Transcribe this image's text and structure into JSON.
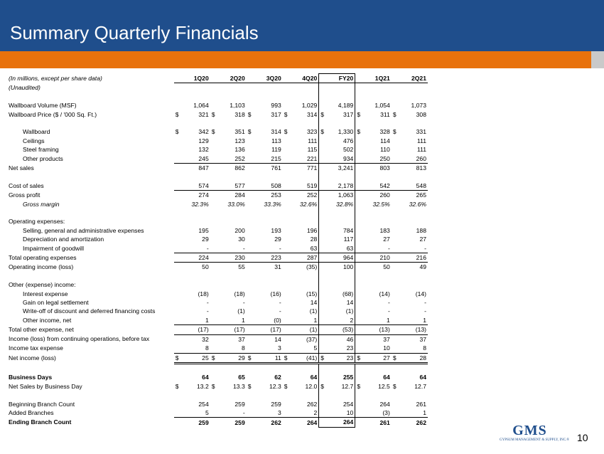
{
  "slide": {
    "title": "Summary Quarterly Financials",
    "page_number": "10",
    "colors": {
      "header": "#1f4e8c",
      "accent_bar": "#e8720c",
      "grey_bar": "#c9c9c9"
    }
  },
  "logo": {
    "text": "GMS",
    "subtitle": "GYPSUM MANAGEMENT & SUPPLY, INC.",
    "registered": "®"
  },
  "table": {
    "note": "(In millions, except per share data)",
    "columns": [
      "1Q20",
      "2Q20",
      "3Q20",
      "4Q20",
      "FY20",
      "1Q21",
      "2Q21"
    ],
    "rows": [
      {
        "label": "(Unaudited)",
        "style": "italic",
        "values": []
      },
      {
        "label": "",
        "style": "spacer",
        "values": []
      },
      {
        "label": "Wallboard Volume (MSF)",
        "values": [
          "1,064",
          "1,103",
          "993",
          "1,029",
          "4,189",
          "1,054",
          "1,073"
        ]
      },
      {
        "label": "Wallboard Price ($ / '000 Sq. Ft.)",
        "currency": true,
        "values": [
          "321",
          "318",
          "317",
          "314",
          "317",
          "311",
          "308"
        ]
      },
      {
        "label": "",
        "style": "spacer",
        "values": []
      },
      {
        "label": "Wallboard",
        "indent": true,
        "currency": true,
        "values": [
          "342",
          "351",
          "314",
          "323",
          "1,330",
          "328",
          "331"
        ]
      },
      {
        "label": "Ceilings",
        "indent": true,
        "values": [
          "129",
          "123",
          "113",
          "111",
          "476",
          "114",
          "111"
        ]
      },
      {
        "label": "Steel framing",
        "indent": true,
        "values": [
          "132",
          "136",
          "119",
          "115",
          "502",
          "110",
          "111"
        ]
      },
      {
        "label": "Other products",
        "indent": true,
        "underline": true,
        "values": [
          "245",
          "252",
          "215",
          "221",
          "934",
          "250",
          "260"
        ]
      },
      {
        "label": "Net sales",
        "values": [
          "847",
          "862",
          "761",
          "771",
          "3,241",
          "803",
          "813"
        ]
      },
      {
        "label": "",
        "style": "spacer",
        "values": []
      },
      {
        "label": "Cost of sales",
        "underline": true,
        "values": [
          "574",
          "577",
          "508",
          "519",
          "2,178",
          "542",
          "548"
        ]
      },
      {
        "label": "Gross profit",
        "values": [
          "274",
          "284",
          "253",
          "252",
          "1,063",
          "260",
          "265"
        ]
      },
      {
        "label": "Gross margin",
        "indent": true,
        "style": "italic",
        "values": [
          "32.3%",
          "33.0%",
          "33.3%",
          "32.6%",
          "32.8%",
          "32.5%",
          "32.6%"
        ]
      },
      {
        "label": "",
        "style": "spacer",
        "values": []
      },
      {
        "label": "Operating expenses:",
        "values": []
      },
      {
        "label": "Selling, general and administrative expenses",
        "indent": true,
        "values": [
          "195",
          "200",
          "193",
          "196",
          "784",
          "183",
          "188"
        ]
      },
      {
        "label": "Depreciation and amortization",
        "indent": true,
        "values": [
          "29",
          "30",
          "29",
          "28",
          "117",
          "27",
          "27"
        ]
      },
      {
        "label": "Impairment of goodwill",
        "indent": true,
        "underline": true,
        "values": [
          "-",
          "-",
          "-",
          "63",
          "63",
          "-",
          "-"
        ]
      },
      {
        "label": "Total operating expenses",
        "underline": true,
        "values": [
          "224",
          "230",
          "223",
          "287",
          "964",
          "210",
          "216"
        ]
      },
      {
        "label": "Operating income (loss)",
        "values": [
          "50",
          "55",
          "31",
          "(35)",
          "100",
          "50",
          "49"
        ]
      },
      {
        "label": "",
        "style": "spacer",
        "values": []
      },
      {
        "label": "Other (expense) income:",
        "values": []
      },
      {
        "label": "Interest expense",
        "indent": true,
        "values": [
          "(18)",
          "(18)",
          "(16)",
          "(15)",
          "(68)",
          "(14)",
          "(14)"
        ]
      },
      {
        "label": "Gain on legal settlement",
        "indent": true,
        "values": [
          "-",
          "-",
          "-",
          "14",
          "14",
          "-",
          "-"
        ]
      },
      {
        "label": "Write-off of discount and deferred financing costs",
        "indent": true,
        "values": [
          "-",
          "(1)",
          "-",
          "(1)",
          "(1)",
          "-",
          "-"
        ]
      },
      {
        "label": "Other income, net",
        "indent": true,
        "underline": true,
        "values": [
          "1",
          "1",
          "(0)",
          "1",
          "2",
          "1",
          "1"
        ]
      },
      {
        "label": "Total other expense, net",
        "underline": true,
        "values": [
          "(17)",
          "(17)",
          "(17)",
          "(1)",
          "(53)",
          "(13)",
          "(13)"
        ]
      },
      {
        "label": "Income (loss) from continuing operations, before tax",
        "values": [
          "32",
          "37",
          "14",
          "(37)",
          "46",
          "37",
          "37"
        ]
      },
      {
        "label": "Income tax expense",
        "underline": true,
        "values": [
          "8",
          "8",
          "3",
          "5",
          "23",
          "10",
          "8"
        ]
      },
      {
        "label": "Net income (loss)",
        "currency": true,
        "double_underline": true,
        "values": [
          "25",
          "29",
          "11",
          "(41)",
          "23",
          "27",
          "28"
        ]
      },
      {
        "label": "",
        "style": "spacer",
        "values": []
      },
      {
        "label": "Business Days",
        "style": "bold",
        "values": [
          "64",
          "65",
          "62",
          "64",
          "255",
          "64",
          "64"
        ]
      },
      {
        "label": "Net Sales by Business Day",
        "currency": true,
        "values": [
          "13.2",
          "13.3",
          "12.3",
          "12.0",
          "12.7",
          "12.5",
          "12.7"
        ]
      },
      {
        "label": "",
        "style": "spacer",
        "values": []
      },
      {
        "label": "Beginning Branch Count",
        "values": [
          "254",
          "259",
          "259",
          "262",
          "254",
          "264",
          "261"
        ]
      },
      {
        "label": "Added Branches",
        "underline": true,
        "values": [
          "5",
          "-",
          "3",
          "2",
          "10",
          "(3)",
          "1"
        ]
      },
      {
        "label": "Ending Branch Count",
        "style": "bold",
        "values": [
          "259",
          "259",
          "262",
          "264",
          "264",
          "261",
          "262"
        ]
      }
    ]
  }
}
